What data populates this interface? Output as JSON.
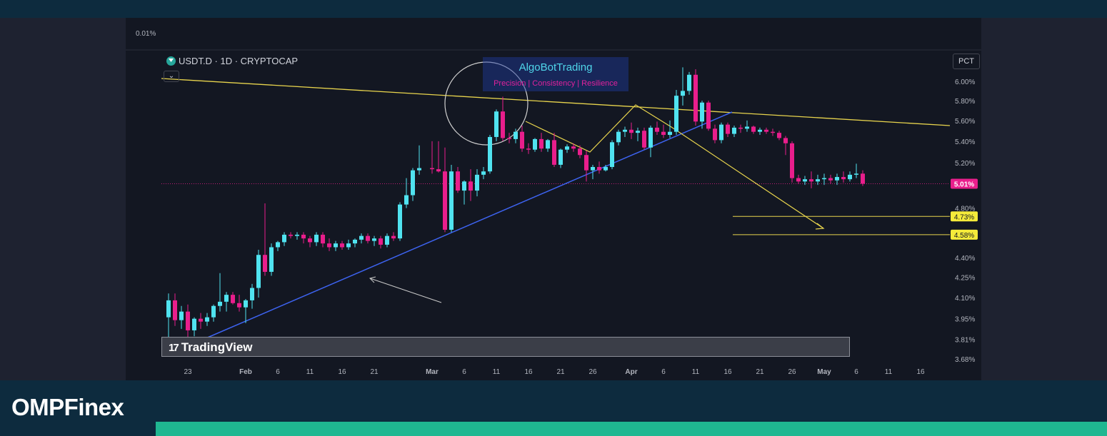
{
  "brand": {
    "name": "OMPFinex"
  },
  "symbol": {
    "label": "USDT.D · 1D · CRYPTOCAP"
  },
  "scale_button": {
    "label": "PCT"
  },
  "top_left_value": "0.01%",
  "watermark": {
    "title": "AlgoBotTrading",
    "subtitle": "Precision  |  Consistency  |  Resilience"
  },
  "tradingview": {
    "mark": "17",
    "label": "TradingView"
  },
  "colors": {
    "up": "#50e3f0",
    "down": "#e91e8c",
    "trendline": "#3d63f0",
    "resistance": "#e8d44d",
    "background": "#131722"
  },
  "chart_data": {
    "type": "candlestick",
    "symbol": "USDT.D",
    "timeframe": "1D",
    "source": "CRYPTOCAP",
    "ylim": [
      3.68,
      6.2
    ],
    "scale": "log",
    "y_ticks": [
      "6.00%",
      "5.80%",
      "5.60%",
      "5.40%",
      "5.20%",
      "4.80%",
      "4.40%",
      "4.25%",
      "4.10%",
      "3.95%",
      "3.81%",
      "3.68%"
    ],
    "x_ticks": [
      "23",
      "Feb",
      "6",
      "11",
      "16",
      "21",
      "Mar",
      "6",
      "11",
      "16",
      "21",
      "26",
      "Apr",
      "6",
      "11",
      "16",
      "21",
      "26",
      "May",
      "6",
      "11",
      "16"
    ],
    "current_price": {
      "label": "5.01%",
      "value": 5.01
    },
    "target_levels": [
      {
        "label": "4.73%",
        "value": 4.73
      },
      {
        "label": "4.58%",
        "value": 4.58
      }
    ],
    "candles": [
      {
        "date": "Jan 20",
        "o": 3.96,
        "h": 4.13,
        "l": 3.82,
        "c": 4.08
      },
      {
        "date": "Jan 21",
        "o": 4.08,
        "h": 4.13,
        "l": 3.9,
        "c": 3.94
      },
      {
        "date": "Jan 22",
        "o": 3.94,
        "h": 4.04,
        "l": 3.88,
        "c": 4.0
      },
      {
        "date": "Jan 23",
        "o": 4.0,
        "h": 4.05,
        "l": 3.82,
        "c": 3.87
      },
      {
        "date": "Jan 24",
        "o": 3.87,
        "h": 3.96,
        "l": 3.83,
        "c": 3.95
      },
      {
        "date": "Jan 25",
        "o": 3.95,
        "h": 3.99,
        "l": 3.88,
        "c": 3.93
      },
      {
        "date": "Jan 26",
        "o": 3.93,
        "h": 3.99,
        "l": 3.9,
        "c": 3.96
      },
      {
        "date": "Jan 27",
        "o": 3.96,
        "h": 4.05,
        "l": 3.93,
        "c": 4.04
      },
      {
        "date": "Jan 28",
        "o": 4.04,
        "h": 4.28,
        "l": 4.0,
        "c": 4.07
      },
      {
        "date": "Jan 29",
        "o": 4.07,
        "h": 4.14,
        "l": 4.0,
        "c": 4.12
      },
      {
        "date": "Jan 30",
        "o": 4.12,
        "h": 4.14,
        "l": 4.05,
        "c": 4.06
      },
      {
        "date": "Jan 31",
        "o": 4.06,
        "h": 4.12,
        "l": 4.0,
        "c": 4.03
      },
      {
        "date": "Feb 1",
        "o": 4.03,
        "h": 4.09,
        "l": 3.92,
        "c": 4.08
      },
      {
        "date": "Feb 2",
        "o": 4.08,
        "h": 4.2,
        "l": 4.02,
        "c": 4.17
      },
      {
        "date": "Feb 3",
        "o": 4.17,
        "h": 4.46,
        "l": 4.1,
        "c": 4.42
      },
      {
        "date": "Feb 4",
        "o": 4.42,
        "h": 4.84,
        "l": 4.26,
        "c": 4.29
      },
      {
        "date": "Feb 5",
        "o": 4.29,
        "h": 4.51,
        "l": 4.26,
        "c": 4.48
      },
      {
        "date": "Feb 6",
        "o": 4.48,
        "h": 4.53,
        "l": 4.45,
        "c": 4.52
      },
      {
        "date": "Feb 7",
        "o": 4.52,
        "h": 4.6,
        "l": 4.49,
        "c": 4.58
      },
      {
        "date": "Feb 8",
        "o": 4.58,
        "h": 4.6,
        "l": 4.55,
        "c": 4.57
      },
      {
        "date": "Feb 9",
        "o": 4.57,
        "h": 4.6,
        "l": 4.54,
        "c": 4.58
      },
      {
        "date": "Feb 10",
        "o": 4.58,
        "h": 4.6,
        "l": 4.51,
        "c": 4.55
      },
      {
        "date": "Feb 11",
        "o": 4.55,
        "h": 4.57,
        "l": 4.48,
        "c": 4.52
      },
      {
        "date": "Feb 12",
        "o": 4.52,
        "h": 4.6,
        "l": 4.49,
        "c": 4.58
      },
      {
        "date": "Feb 13",
        "o": 4.58,
        "h": 4.6,
        "l": 4.48,
        "c": 4.51
      },
      {
        "date": "Feb 14",
        "o": 4.51,
        "h": 4.55,
        "l": 4.45,
        "c": 4.48
      },
      {
        "date": "Feb 15",
        "o": 4.48,
        "h": 4.53,
        "l": 4.45,
        "c": 4.51
      },
      {
        "date": "Feb 16",
        "o": 4.51,
        "h": 4.53,
        "l": 4.46,
        "c": 4.48
      },
      {
        "date": "Feb 17",
        "o": 4.48,
        "h": 4.54,
        "l": 4.46,
        "c": 4.51
      },
      {
        "date": "Feb 18",
        "o": 4.51,
        "h": 4.55,
        "l": 4.48,
        "c": 4.54
      },
      {
        "date": "Feb 19",
        "o": 4.54,
        "h": 4.59,
        "l": 4.51,
        "c": 4.57
      },
      {
        "date": "Feb 20",
        "o": 4.57,
        "h": 4.59,
        "l": 4.51,
        "c": 4.53
      },
      {
        "date": "Feb 21",
        "o": 4.53,
        "h": 4.57,
        "l": 4.49,
        "c": 4.55
      },
      {
        "date": "Feb 22",
        "o": 4.55,
        "h": 4.57,
        "l": 4.47,
        "c": 4.5
      },
      {
        "date": "Feb 23",
        "o": 4.5,
        "h": 4.59,
        "l": 4.48,
        "c": 4.57
      },
      {
        "date": "Feb 24",
        "o": 4.57,
        "h": 4.6,
        "l": 4.53,
        "c": 4.55
      },
      {
        "date": "Feb 25",
        "o": 4.55,
        "h": 4.85,
        "l": 4.53,
        "c": 4.83
      },
      {
        "date": "Feb 26",
        "o": 4.83,
        "h": 5.06,
        "l": 4.8,
        "c": 4.91
      },
      {
        "date": "Feb 27",
        "o": 4.91,
        "h": 5.15,
        "l": 4.86,
        "c": 5.13
      },
      {
        "date": "Feb 28",
        "o": 5.13,
        "h": 5.36,
        "l": 5.09,
        "c": 5.15
      },
      {
        "date": "Mar 1",
        "o": 5.15,
        "h": 5.4,
        "l": 5.1,
        "c": 5.14
      },
      {
        "date": "Mar 2",
        "o": 5.14,
        "h": 5.4,
        "l": 5.11,
        "c": 5.12
      },
      {
        "date": "Mar 3",
        "o": 5.12,
        "h": 5.34,
        "l": 4.6,
        "c": 4.62
      },
      {
        "date": "Mar 4",
        "o": 4.62,
        "h": 5.18,
        "l": 4.6,
        "c": 5.12
      },
      {
        "date": "Mar 5",
        "o": 5.12,
        "h": 5.16,
        "l": 4.93,
        "c": 4.95
      },
      {
        "date": "Mar 6",
        "o": 4.95,
        "h": 5.04,
        "l": 4.83,
        "c": 5.03
      },
      {
        "date": "Mar 7",
        "o": 5.03,
        "h": 5.14,
        "l": 4.86,
        "c": 4.95
      },
      {
        "date": "Mar 8",
        "o": 4.95,
        "h": 5.14,
        "l": 4.9,
        "c": 5.09
      },
      {
        "date": "Mar 9",
        "o": 5.09,
        "h": 5.16,
        "l": 5.05,
        "c": 5.12
      },
      {
        "date": "Mar 10",
        "o": 5.12,
        "h": 5.46,
        "l": 5.1,
        "c": 5.44
      },
      {
        "date": "Mar 11",
        "o": 5.44,
        "h": 5.71,
        "l": 5.4,
        "c": 5.69
      },
      {
        "date": "Mar 12",
        "o": 5.69,
        "h": 5.84,
        "l": 5.4,
        "c": 5.43
      },
      {
        "date": "Mar 13",
        "o": 5.43,
        "h": 5.48,
        "l": 5.38,
        "c": 5.42
      },
      {
        "date": "Mar 14",
        "o": 5.42,
        "h": 5.52,
        "l": 5.38,
        "c": 5.49
      },
      {
        "date": "Mar 15",
        "o": 5.49,
        "h": 5.55,
        "l": 5.3,
        "c": 5.33
      },
      {
        "date": "Mar 16",
        "o": 5.33,
        "h": 5.38,
        "l": 5.28,
        "c": 5.32
      },
      {
        "date": "Mar 17",
        "o": 5.32,
        "h": 5.43,
        "l": 5.3,
        "c": 5.42
      },
      {
        "date": "Mar 18",
        "o": 5.42,
        "h": 5.48,
        "l": 5.3,
        "c": 5.33
      },
      {
        "date": "Mar 19",
        "o": 5.33,
        "h": 5.42,
        "l": 5.3,
        "c": 5.41
      },
      {
        "date": "Mar 20",
        "o": 5.41,
        "h": 5.48,
        "l": 5.16,
        "c": 5.18
      },
      {
        "date": "Mar 21",
        "o": 5.18,
        "h": 5.33,
        "l": 5.15,
        "c": 5.32
      },
      {
        "date": "Mar 22",
        "o": 5.32,
        "h": 5.37,
        "l": 5.29,
        "c": 5.35
      },
      {
        "date": "Mar 23",
        "o": 5.35,
        "h": 5.38,
        "l": 5.3,
        "c": 5.33
      },
      {
        "date": "Mar 24",
        "o": 5.33,
        "h": 5.36,
        "l": 5.24,
        "c": 5.27
      },
      {
        "date": "Mar 25",
        "o": 5.27,
        "h": 5.31,
        "l": 5.03,
        "c": 5.13
      },
      {
        "date": "Mar 26",
        "o": 5.13,
        "h": 5.18,
        "l": 5.05,
        "c": 5.16
      },
      {
        "date": "Mar 27",
        "o": 5.16,
        "h": 5.21,
        "l": 5.1,
        "c": 5.13
      },
      {
        "date": "Mar 28",
        "o": 5.13,
        "h": 5.18,
        "l": 5.12,
        "c": 5.16
      },
      {
        "date": "Mar 29",
        "o": 5.16,
        "h": 5.41,
        "l": 5.14,
        "c": 5.39
      },
      {
        "date": "Mar 30",
        "o": 5.39,
        "h": 5.51,
        "l": 5.36,
        "c": 5.49
      },
      {
        "date": "Mar 31",
        "o": 5.49,
        "h": 5.54,
        "l": 5.44,
        "c": 5.51
      },
      {
        "date": "Apr 1",
        "o": 5.51,
        "h": 5.58,
        "l": 5.42,
        "c": 5.48
      },
      {
        "date": "Apr 2",
        "o": 5.48,
        "h": 5.53,
        "l": 5.4,
        "c": 5.5
      },
      {
        "date": "Apr 3",
        "o": 5.5,
        "h": 5.53,
        "l": 5.32,
        "c": 5.34
      },
      {
        "date": "Apr 4",
        "o": 5.34,
        "h": 5.55,
        "l": 5.25,
        "c": 5.53
      },
      {
        "date": "Apr 5",
        "o": 5.53,
        "h": 5.59,
        "l": 5.46,
        "c": 5.49
      },
      {
        "date": "Apr 6",
        "o": 5.49,
        "h": 5.56,
        "l": 5.43,
        "c": 5.46
      },
      {
        "date": "Apr 7",
        "o": 5.46,
        "h": 5.6,
        "l": 5.43,
        "c": 5.49
      },
      {
        "date": "Apr 8",
        "o": 5.49,
        "h": 5.91,
        "l": 5.46,
        "c": 5.85
      },
      {
        "date": "Apr 9",
        "o": 5.85,
        "h": 6.15,
        "l": 5.75,
        "c": 5.9
      },
      {
        "date": "Apr 10",
        "o": 5.9,
        "h": 6.1,
        "l": 5.86,
        "c": 6.07
      },
      {
        "date": "Apr 11",
        "o": 6.07,
        "h": 6.13,
        "l": 5.55,
        "c": 5.59
      },
      {
        "date": "Apr 12",
        "o": 5.59,
        "h": 5.8,
        "l": 5.52,
        "c": 5.78
      },
      {
        "date": "Apr 13",
        "o": 5.78,
        "h": 5.8,
        "l": 5.5,
        "c": 5.52
      },
      {
        "date": "Apr 14",
        "o": 5.52,
        "h": 5.56,
        "l": 5.38,
        "c": 5.41
      },
      {
        "date": "Apr 15",
        "o": 5.41,
        "h": 5.58,
        "l": 5.38,
        "c": 5.56
      },
      {
        "date": "Apr 16",
        "o": 5.56,
        "h": 5.58,
        "l": 5.44,
        "c": 5.47
      },
      {
        "date": "Apr 17",
        "o": 5.47,
        "h": 5.55,
        "l": 5.44,
        "c": 5.53
      },
      {
        "date": "Apr 18",
        "o": 5.53,
        "h": 5.56,
        "l": 5.48,
        "c": 5.52
      },
      {
        "date": "Apr 19",
        "o": 5.52,
        "h": 5.6,
        "l": 5.49,
        "c": 5.54
      },
      {
        "date": "Apr 20",
        "o": 5.54,
        "h": 5.55,
        "l": 5.47,
        "c": 5.49
      },
      {
        "date": "Apr 21",
        "o": 5.49,
        "h": 5.53,
        "l": 5.46,
        "c": 5.51
      },
      {
        "date": "Apr 22",
        "o": 5.51,
        "h": 5.53,
        "l": 5.47,
        "c": 5.49
      },
      {
        "date": "Apr 23",
        "o": 5.49,
        "h": 5.52,
        "l": 5.45,
        "c": 5.48
      },
      {
        "date": "Apr 24",
        "o": 5.48,
        "h": 5.5,
        "l": 5.41,
        "c": 5.43
      },
      {
        "date": "Apr 25",
        "o": 5.43,
        "h": 5.45,
        "l": 5.27,
        "c": 5.38
      },
      {
        "date": "Apr 26",
        "o": 5.38,
        "h": 5.4,
        "l": 5.02,
        "c": 5.06
      },
      {
        "date": "Apr 27",
        "o": 5.06,
        "h": 5.09,
        "l": 5.01,
        "c": 5.03
      },
      {
        "date": "Apr 28",
        "o": 5.03,
        "h": 5.08,
        "l": 5.0,
        "c": 5.05
      },
      {
        "date": "Apr 29",
        "o": 5.05,
        "h": 5.12,
        "l": 4.97,
        "c": 5.03
      },
      {
        "date": "Apr 30",
        "o": 5.03,
        "h": 5.09,
        "l": 5.0,
        "c": 5.05
      },
      {
        "date": "May 1",
        "o": 5.05,
        "h": 5.1,
        "l": 5.0,
        "c": 5.06
      },
      {
        "date": "May 2",
        "o": 5.06,
        "h": 5.09,
        "l": 5.01,
        "c": 5.04
      },
      {
        "date": "May 3",
        "o": 5.04,
        "h": 5.1,
        "l": 5.0,
        "c": 5.07
      },
      {
        "date": "May 4",
        "o": 5.07,
        "h": 5.12,
        "l": 5.02,
        "c": 5.05
      },
      {
        "date": "May 5",
        "o": 5.05,
        "h": 5.12,
        "l": 5.03,
        "c": 5.09
      },
      {
        "date": "May 6",
        "o": 5.09,
        "h": 5.19,
        "l": 5.06,
        "c": 5.1
      },
      {
        "date": "May 7",
        "o": 5.1,
        "h": 5.13,
        "l": 4.99,
        "c": 5.01
      }
    ]
  }
}
